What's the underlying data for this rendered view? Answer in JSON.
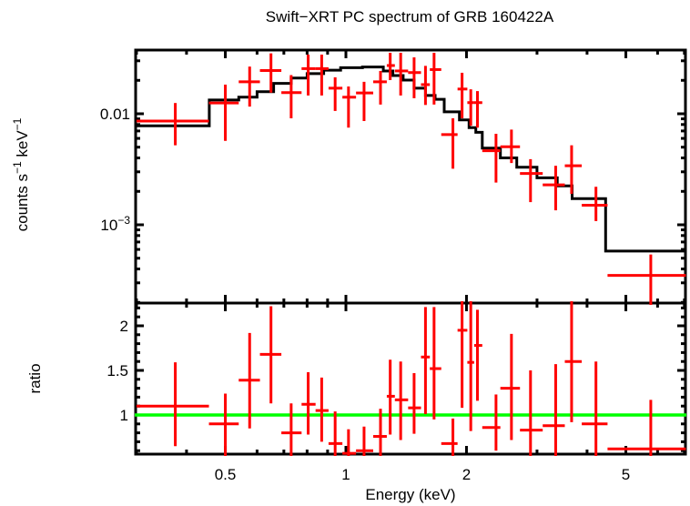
{
  "figure": {
    "title": "Swift−XRT PC spectrum of GRB 160422A",
    "background": "#ffffff"
  },
  "colors": {
    "data": "#ff0000",
    "model": "#000000",
    "reference": "#00ff00",
    "frame": "#000000"
  },
  "chart_data": [
    {
      "type": "scatter",
      "name": "spectrum-panel",
      "title": "Swift−XRT PC spectrum of GRB 160422A",
      "xscale": "log",
      "yscale": "log",
      "xlabel": "Energy (keV)",
      "ylabel": "counts s−1 keV−1",
      "ylabel_parts": [
        [
          "counts s",
          0
        ],
        [
          "−1",
          1
        ],
        [
          " keV",
          0
        ],
        [
          "−1",
          1
        ]
      ],
      "xlim": [
        0.2995,
        7.06
      ],
      "ylim": [
        0.000197,
        0.0375
      ],
      "grid": false,
      "legend": "none",
      "xticks": [
        {
          "label": "0.5",
          "value": 0.5
        },
        {
          "label": "1",
          "value": 1
        },
        {
          "label": "2",
          "value": 2
        },
        {
          "label": "5",
          "value": 5
        }
      ],
      "xticks_minor": [
        0.3,
        0.4,
        0.6,
        0.7,
        0.8,
        0.9,
        3,
        4,
        6,
        7
      ],
      "yticks": [
        {
          "parts": [
            [
              "0.01",
              0
            ]
          ],
          "value": 0.01
        },
        {
          "parts": [
            [
              "10",
              0
            ],
            [
              "−3",
              1
            ]
          ],
          "value": 0.001
        }
      ],
      "yticks_minor": [
        0.0002,
        0.0003,
        0.0004,
        0.0005,
        0.0006,
        0.0007,
        0.0008,
        0.0009,
        0.002,
        0.003,
        0.004,
        0.005,
        0.006,
        0.007,
        0.008,
        0.009,
        0.02,
        0.03
      ],
      "model_bins_columns": [
        "E_lo_keV",
        "E_hi_keV",
        "counts_s_keV"
      ],
      "model_bins": [
        [
          0.3,
          0.456,
          0.0078
        ],
        [
          0.456,
          0.54,
          0.0133
        ],
        [
          0.54,
          0.6,
          0.0141
        ],
        [
          0.6,
          0.66,
          0.0158
        ],
        [
          0.66,
          0.73,
          0.0188
        ],
        [
          0.73,
          0.8,
          0.021
        ],
        [
          0.8,
          0.88,
          0.023
        ],
        [
          0.88,
          0.97,
          0.0247
        ],
        [
          0.97,
          1.1,
          0.026
        ],
        [
          1.1,
          1.24,
          0.0264
        ],
        [
          1.24,
          1.31,
          0.0243
        ],
        [
          1.31,
          1.39,
          0.0221
        ],
        [
          1.39,
          1.48,
          0.0201
        ],
        [
          1.48,
          1.58,
          0.017
        ],
        [
          1.58,
          1.67,
          0.0146
        ],
        [
          1.67,
          1.76,
          0.0135
        ],
        [
          1.76,
          1.92,
          0.0104
        ],
        [
          1.92,
          2.03,
          0.0088
        ],
        [
          2.03,
          2.11,
          0.0075
        ],
        [
          2.11,
          2.19,
          0.0068
        ],
        [
          2.19,
          2.43,
          0.0049
        ],
        [
          2.43,
          2.67,
          0.004
        ],
        [
          2.67,
          3.0,
          0.0033
        ],
        [
          3.0,
          3.37,
          0.00265
        ],
        [
          3.37,
          3.67,
          0.00224
        ],
        [
          3.67,
          4.45,
          0.00172
        ],
        [
          4.45,
          7.06,
          0.00058
        ]
      ],
      "points_columns": [
        "E_keV",
        "E_lo",
        "E_hi",
        "rate",
        "rate_lo",
        "rate_hi"
      ],
      "points": [
        [
          0.375,
          0.3,
          0.455,
          0.0086,
          0.0052,
          0.0125
        ],
        [
          0.5,
          0.455,
          0.54,
          0.0125,
          0.0057,
          0.0183
        ],
        [
          0.575,
          0.54,
          0.61,
          0.0194,
          0.0116,
          0.0266
        ],
        [
          0.65,
          0.61,
          0.69,
          0.0245,
          0.0155,
          0.035
        ],
        [
          0.73,
          0.69,
          0.775,
          0.0155,
          0.0091,
          0.0223
        ],
        [
          0.805,
          0.775,
          0.84,
          0.0255,
          0.0146,
          0.0341
        ],
        [
          0.87,
          0.84,
          0.905,
          0.0255,
          0.0146,
          0.0341
        ],
        [
          0.94,
          0.905,
          0.98,
          0.017,
          0.0106,
          0.0213
        ],
        [
          1.015,
          0.98,
          1.06,
          0.0141,
          0.0075,
          0.0176
        ],
        [
          1.11,
          1.06,
          1.17,
          0.0154,
          0.0086,
          0.0194
        ],
        [
          1.22,
          1.17,
          1.265,
          0.0194,
          0.0121,
          0.0243
        ],
        [
          1.29,
          1.265,
          1.325,
          0.0272,
          0.0201,
          0.0354
        ],
        [
          1.37,
          1.325,
          1.43,
          0.0243,
          0.0146,
          0.0354
        ],
        [
          1.48,
          1.43,
          1.54,
          0.0235,
          0.0138,
          0.0322
        ],
        [
          1.58,
          1.54,
          1.62,
          0.0183,
          0.012,
          0.027
        ],
        [
          1.66,
          1.62,
          1.73,
          0.025,
          0.0121,
          0.0354
        ],
        [
          1.85,
          1.73,
          1.9,
          0.0065,
          0.0032,
          0.0091
        ],
        [
          1.95,
          1.9,
          2.01,
          0.0167,
          0.0091,
          0.0234
        ],
        [
          2.05,
          2.01,
          2.09,
          0.0126,
          0.0078,
          0.0166
        ],
        [
          2.13,
          2.09,
          2.19,
          0.0126,
          0.0075,
          0.016
        ],
        [
          2.37,
          2.19,
          2.43,
          0.00465,
          0.0024,
          0.0066
        ],
        [
          2.59,
          2.43,
          2.72,
          0.00505,
          0.0036,
          0.0072
        ],
        [
          2.89,
          2.72,
          3.1,
          0.0029,
          0.0016,
          0.0039
        ],
        [
          3.34,
          3.1,
          3.52,
          0.00229,
          0.00135,
          0.0034
        ],
        [
          3.66,
          3.52,
          3.88,
          0.0034,
          0.0019,
          0.0052
        ],
        [
          4.21,
          3.88,
          4.5,
          0.0015,
          0.00108,
          0.0022
        ],
        [
          5.77,
          4.5,
          7.06,
          0.00035,
          0.000185,
          0.00054
        ]
      ]
    },
    {
      "type": "scatter",
      "name": "ratio-panel",
      "xscale": "log",
      "yscale": "linear",
      "xlabel": "Energy (keV)",
      "ylabel": "ratio",
      "xlim": [
        0.2995,
        7.06
      ],
      "ylim": [
        0.561,
        2.255
      ],
      "grid": false,
      "reference_line": 1.0,
      "yticks": [
        {
          "label": "1",
          "value": 1
        },
        {
          "label": "1.5",
          "value": 1.5
        },
        {
          "label": "2",
          "value": 2
        }
      ],
      "yticks_minor": [
        0.6,
        0.7,
        0.8,
        0.9,
        1.1,
        1.2,
        1.3,
        1.4,
        1.6,
        1.7,
        1.8,
        1.9,
        2.1,
        2.2
      ],
      "points_columns": [
        "E_keV",
        "E_lo",
        "E_hi",
        "ratio",
        "ratio_lo",
        "ratio_hi"
      ],
      "points": [
        [
          0.375,
          0.3,
          0.455,
          1.1,
          0.65,
          1.59
        ],
        [
          0.5,
          0.455,
          0.54,
          0.9,
          0.53,
          1.24
        ],
        [
          0.575,
          0.54,
          0.61,
          1.39,
          0.85,
          1.92
        ],
        [
          0.65,
          0.61,
          0.69,
          1.68,
          1.13,
          2.22
        ],
        [
          0.73,
          0.69,
          0.775,
          0.8,
          0.46,
          1.13
        ],
        [
          0.805,
          0.775,
          0.84,
          1.12,
          0.78,
          1.48
        ],
        [
          0.87,
          0.84,
          0.905,
          1.05,
          0.7,
          1.42
        ],
        [
          0.94,
          0.905,
          0.98,
          0.68,
          0.42,
          1.04
        ],
        [
          1.015,
          0.98,
          1.06,
          0.57,
          0.3,
          0.84
        ],
        [
          1.11,
          1.06,
          1.17,
          0.6,
          0.33,
          0.87
        ],
        [
          1.22,
          1.17,
          1.265,
          0.76,
          0.46,
          1.07
        ],
        [
          1.29,
          1.265,
          1.325,
          1.21,
          0.78,
          1.62
        ],
        [
          1.37,
          1.325,
          1.43,
          1.17,
          0.72,
          1.6
        ],
        [
          1.48,
          1.43,
          1.54,
          1.08,
          0.79,
          1.47
        ],
        [
          1.58,
          1.54,
          1.62,
          1.65,
          1.01,
          2.21
        ],
        [
          1.66,
          1.62,
          1.73,
          1.52,
          0.95,
          2.21
        ],
        [
          1.85,
          1.73,
          1.9,
          0.68,
          0.44,
          0.96
        ],
        [
          1.95,
          1.9,
          2.01,
          1.95,
          1.08,
          2.3
        ],
        [
          2.05,
          2.01,
          2.09,
          1.59,
          0.82,
          2.3
        ],
        [
          2.13,
          2.09,
          2.19,
          1.78,
          1.16,
          2.18
        ],
        [
          2.37,
          2.19,
          2.43,
          0.86,
          0.6,
          1.23
        ],
        [
          2.59,
          2.43,
          2.72,
          1.3,
          0.72,
          1.91
        ],
        [
          2.89,
          2.72,
          3.1,
          0.83,
          0.44,
          1.5
        ],
        [
          3.34,
          3.1,
          3.52,
          0.88,
          0.46,
          1.57
        ],
        [
          3.66,
          3.52,
          3.88,
          1.6,
          0.92,
          2.3
        ],
        [
          4.21,
          3.88,
          4.5,
          0.9,
          0.45,
          1.6
        ],
        [
          5.77,
          4.5,
          7.06,
          0.62,
          0.36,
          1.17
        ]
      ]
    }
  ]
}
